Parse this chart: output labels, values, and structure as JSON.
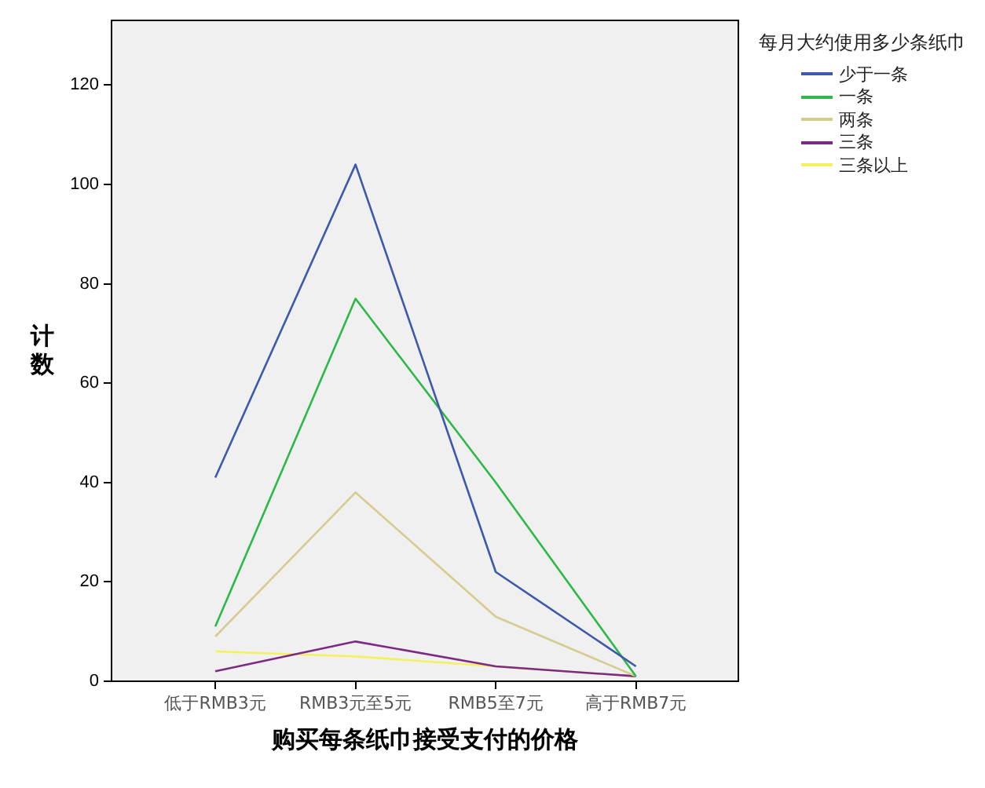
{
  "chart_data": {
    "type": "line",
    "xlabel": "购买每条纸巾接受支付的价格",
    "ylabel": "计数",
    "legend_title": "每月大约使用多少条纸巾",
    "categories": [
      "低于RMB3元",
      "RMB3元至5元",
      "RMB5至7元",
      "高于RMB7元"
    ],
    "ylim": [
      0,
      133
    ],
    "yticks": [
      0,
      20,
      40,
      60,
      80,
      100,
      120
    ],
    "grid": false,
    "legend": "right",
    "marker": "none",
    "line_style": "solid",
    "series": [
      {
        "name": "少于一条",
        "color": "#3e58ac",
        "values": [
          41,
          104,
          22,
          3
        ]
      },
      {
        "name": "一条",
        "color": "#2eb848",
        "values": [
          11,
          77,
          40,
          1
        ]
      },
      {
        "name": "两条",
        "color": "#d4cc90",
        "values": [
          9,
          38,
          13,
          1
        ]
      },
      {
        "name": "三条",
        "color": "#7c2a84",
        "values": [
          2,
          8,
          3,
          1
        ]
      },
      {
        "name": "三条以上",
        "color": "#f5f060",
        "values": [
          6,
          5,
          3,
          1
        ]
      }
    ]
  }
}
